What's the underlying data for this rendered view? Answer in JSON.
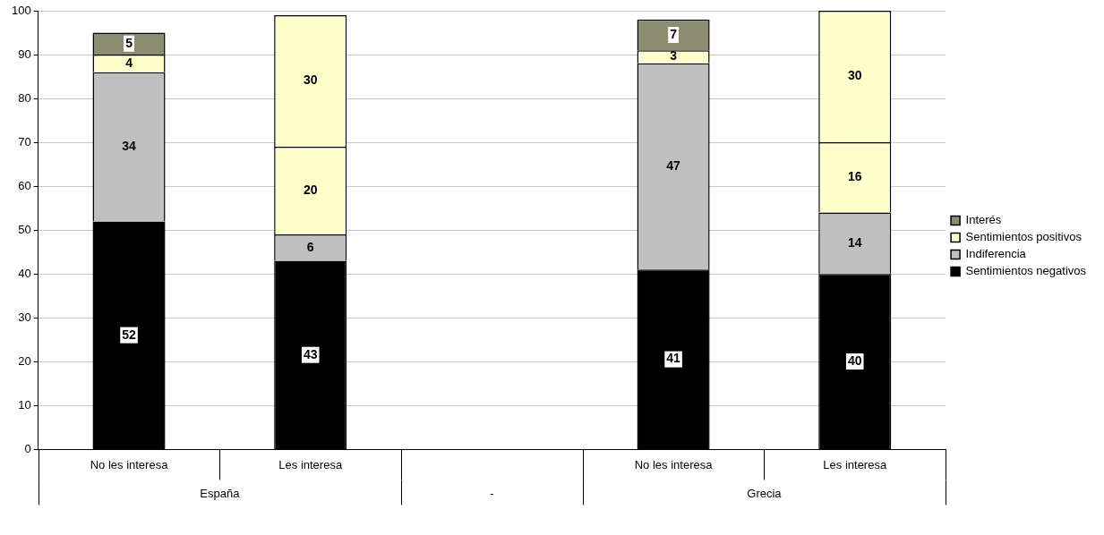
{
  "chart_data": {
    "type": "bar",
    "stacked": true,
    "categories": [
      "No les interesa",
      "Les interesa",
      null,
      "No les interesa",
      "Les interesa"
    ],
    "series": [
      {
        "name": "Sentimientos negativos",
        "color": "#000000",
        "values": [
          52,
          43,
          null,
          41,
          40
        ]
      },
      {
        "name": "Indiferencia",
        "color": "#c0c0c0",
        "values": [
          34,
          6,
          null,
          47,
          14
        ]
      },
      {
        "name": "Sentimientos positivos",
        "color": "#ffffcc",
        "values": [
          4,
          20,
          null,
          3,
          16
        ]
      },
      {
        "name": "Interés",
        "color": "#8c8c70",
        "colors": [
          "#8c8c70",
          "#ffffcc",
          null,
          "#8c8c70",
          "#ffffcc"
        ],
        "values": [
          5,
          30,
          null,
          7,
          30
        ]
      }
    ],
    "annotations": [
      "España",
      "-",
      "Grecia"
    ],
    "ylim": [
      0,
      100
    ],
    "yticks": [
      0,
      10,
      20,
      30,
      40,
      50,
      60,
      70,
      80,
      90,
      100
    ],
    "grid": "y",
    "legend": "right",
    "data_labels": true
  }
}
